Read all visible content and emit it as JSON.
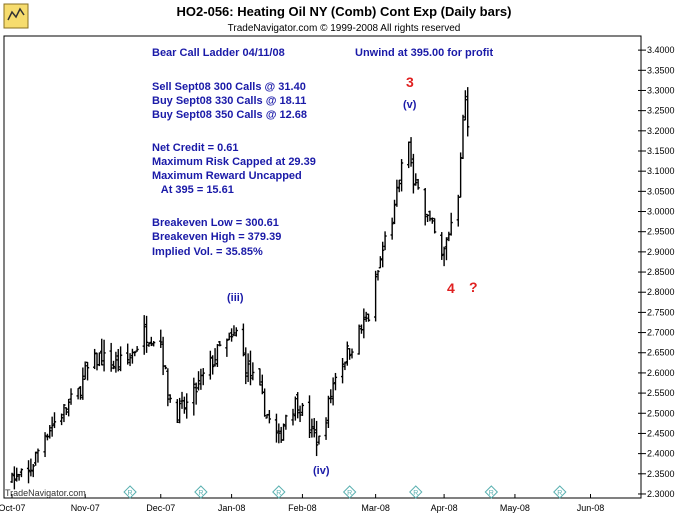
{
  "title": "HO2-056:  Heating Oil NY (Comb) Cont Exp  (Daily bars)",
  "subtitle": "TradeNavigator.com © 1999-2008 All rights reserved",
  "watermark": "TradeNavigator.com",
  "colors": {
    "text_blue": "#1a1aa8",
    "label_red": "#e02020",
    "bars": "#000000",
    "frame": "#000000",
    "marker": "#5ab0b0"
  },
  "annotation_lines": [
    "Bear Call Ladder 04/11/08",
    "",
    "Sell Sept08 300 Calls @ 31.40",
    "Buy Sept08 330 Calls @ 18.11",
    "Buy Sept08 350 Calls @ 12.68",
    "",
    "Net Credit = 0.61",
    "Maximum Risk Capped at 29.39",
    "Maximum Reward Uncapped",
    "   At 395 = 15.61",
    "",
    "Breakeven Low = 300.61",
    "Breakeven High = 379.39",
    "Implied Vol. = 35.85%"
  ],
  "unwind_note": "Unwind at 395.00 for profit",
  "wave_labels": {
    "iii": "(iii)",
    "iv": "(iv)",
    "v": "(v)",
    "three": "3",
    "four": "4",
    "question": "?"
  },
  "chart_data": {
    "type": "bar",
    "style": "OHLC daily bars",
    "y_axis_side": "right",
    "ylim": [
      2.29,
      3.435
    ],
    "y_ticks": [
      "3.4000",
      "3.3500",
      "3.3000",
      "3.2500",
      "3.2000",
      "3.1500",
      "3.1000",
      "3.0500",
      "3.0000",
      "2.9500",
      "2.9000",
      "2.8500",
      "2.8000",
      "2.7500",
      "2.7000",
      "2.6500",
      "2.6000",
      "2.5500",
      "2.5000",
      "2.4500",
      "2.4000",
      "2.3500",
      "2.3000"
    ],
    "x_ticks": [
      "Oct-07",
      "Nov-07",
      "Dec-07",
      "Jan-08",
      "Feb-08",
      "Mar-08",
      "Apr-08",
      "May-08",
      "Jun-08"
    ],
    "x_domain_days": [
      "2007-10-01",
      "2008-06-20"
    ],
    "x_tick_dates": [
      "2007-10-01",
      "2007-11-01",
      "2007-12-03",
      "2008-01-02",
      "2008-02-01",
      "2008-03-03",
      "2008-04-01",
      "2008-05-01",
      "2008-06-02"
    ],
    "marker_dates": [
      "2007-11-20",
      "2007-12-20",
      "2008-01-22",
      "2008-02-21",
      "2008-03-20",
      "2008-04-21",
      "2008-05-20"
    ],
    "series": [
      {
        "name": "HO2-056",
        "waypoints": [
          [
            "2007-10-01",
            2.33
          ],
          [
            "2007-10-08",
            2.35
          ],
          [
            "2007-10-15",
            2.45
          ],
          [
            "2007-10-22",
            2.5
          ],
          [
            "2007-10-29",
            2.55
          ],
          [
            "2007-11-01",
            2.6
          ],
          [
            "2007-11-07",
            2.64
          ],
          [
            "2007-11-13",
            2.62
          ],
          [
            "2007-11-19",
            2.63
          ],
          [
            "2007-11-26",
            2.7
          ],
          [
            "2007-12-03",
            2.68
          ],
          [
            "2007-12-06",
            2.55
          ],
          [
            "2007-12-10",
            2.5
          ],
          [
            "2007-12-14",
            2.52
          ],
          [
            "2007-12-19",
            2.57
          ],
          [
            "2007-12-24",
            2.62
          ],
          [
            "2007-12-28",
            2.66
          ],
          [
            "2008-01-02",
            2.68
          ],
          [
            "2008-01-04",
            2.7
          ],
          [
            "2008-01-08",
            2.62
          ],
          [
            "2008-01-14",
            2.55
          ],
          [
            "2008-01-18",
            2.48
          ],
          [
            "2008-01-22",
            2.43
          ],
          [
            "2008-01-25",
            2.5
          ],
          [
            "2008-01-30",
            2.53
          ],
          [
            "2008-02-05",
            2.45
          ],
          [
            "2008-02-08",
            2.43
          ],
          [
            "2008-02-12",
            2.52
          ],
          [
            "2008-02-15",
            2.6
          ],
          [
            "2008-02-20",
            2.65
          ],
          [
            "2008-02-25",
            2.7
          ],
          [
            "2008-02-29",
            2.74
          ],
          [
            "2008-03-04",
            2.85
          ],
          [
            "2008-03-07",
            2.93
          ],
          [
            "2008-03-11",
            3.0
          ],
          [
            "2008-03-13",
            3.08
          ],
          [
            "2008-03-17",
            3.18
          ],
          [
            "2008-03-19",
            3.05
          ],
          [
            "2008-03-21",
            3.08
          ],
          [
            "2008-03-24",
            3.0
          ],
          [
            "2008-03-26",
            2.97
          ],
          [
            "2008-03-28",
            2.94
          ],
          [
            "2008-03-31",
            2.88
          ],
          [
            "2008-04-01",
            2.9
          ],
          [
            "2008-04-03",
            2.95
          ],
          [
            "2008-04-07",
            3.05
          ],
          [
            "2008-04-08",
            3.15
          ],
          [
            "2008-04-09",
            3.22
          ],
          [
            "2008-04-10",
            3.28
          ],
          [
            "2008-04-11",
            3.2
          ]
        ]
      }
    ]
  }
}
